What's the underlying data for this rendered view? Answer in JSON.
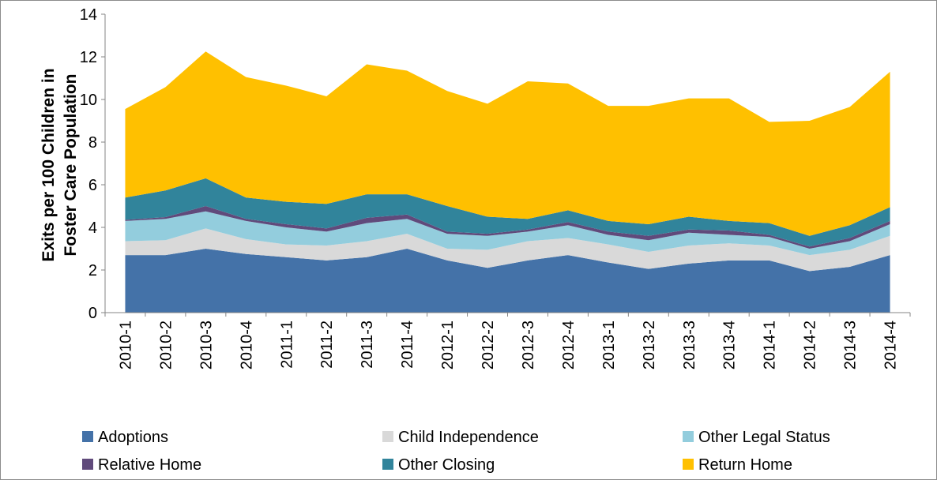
{
  "chart_data": {
    "type": "area",
    "stacked": true,
    "ylabel_line1": "Exits per 100 Children in",
    "ylabel_line2": "Foster Care Population",
    "ylim": [
      0,
      14
    ],
    "yticks": [
      0,
      2,
      4,
      6,
      8,
      10,
      12,
      14
    ],
    "grid": false,
    "legend_position": "bottom",
    "categories": [
      "2010-1",
      "2010-2",
      "2010-3",
      "2010-4",
      "2011-1",
      "2011-2",
      "2011-3",
      "2011-4",
      "2012-1",
      "2012-2",
      "2012-3",
      "2012-4",
      "2013-1",
      "2013-2",
      "2013-3",
      "2013-4",
      "2014-1",
      "2014-2",
      "2014-3",
      "2014-4"
    ],
    "series": [
      {
        "name": "Adoptions",
        "color": "#4472a8",
        "values": [
          2.7,
          2.7,
          3.0,
          2.75,
          2.6,
          2.45,
          2.6,
          3.0,
          2.45,
          2.1,
          2.45,
          2.7,
          2.35,
          2.05,
          2.3,
          2.45,
          2.45,
          1.95,
          2.15,
          2.7
        ]
      },
      {
        "name": "Child Independence",
        "color": "#d9d9d9",
        "values": [
          0.65,
          0.7,
          0.95,
          0.7,
          0.6,
          0.7,
          0.75,
          0.7,
          0.55,
          0.85,
          0.9,
          0.8,
          0.85,
          0.8,
          0.85,
          0.8,
          0.7,
          0.75,
          0.8,
          0.9
        ]
      },
      {
        "name": "Other Legal Status",
        "color": "#93cddd",
        "values": [
          0.95,
          1.0,
          0.8,
          0.85,
          0.8,
          0.65,
          0.85,
          0.7,
          0.7,
          0.65,
          0.45,
          0.6,
          0.45,
          0.55,
          0.6,
          0.4,
          0.4,
          0.3,
          0.4,
          0.55
        ]
      },
      {
        "name": "Relative Home",
        "color": "#604a7b",
        "values": [
          0.05,
          0.08,
          0.25,
          0.1,
          0.15,
          0.15,
          0.25,
          0.2,
          0.1,
          0.1,
          0.1,
          0.15,
          0.15,
          0.2,
          0.15,
          0.2,
          0.1,
          0.1,
          0.15,
          0.15
        ]
      },
      {
        "name": "Other Closing",
        "color": "#31849b",
        "values": [
          1.05,
          1.25,
          1.3,
          1.0,
          1.05,
          1.15,
          1.1,
          0.95,
          1.2,
          0.8,
          0.5,
          0.55,
          0.5,
          0.55,
          0.6,
          0.45,
          0.55,
          0.5,
          0.6,
          0.65
        ]
      },
      {
        "name": "Return Home",
        "color": "#ffc000",
        "values": [
          4.15,
          4.85,
          5.95,
          5.65,
          5.45,
          5.05,
          6.1,
          5.8,
          5.4,
          5.3,
          6.45,
          5.95,
          5.4,
          5.55,
          5.55,
          5.75,
          4.75,
          5.4,
          5.55,
          6.35
        ]
      }
    ]
  }
}
